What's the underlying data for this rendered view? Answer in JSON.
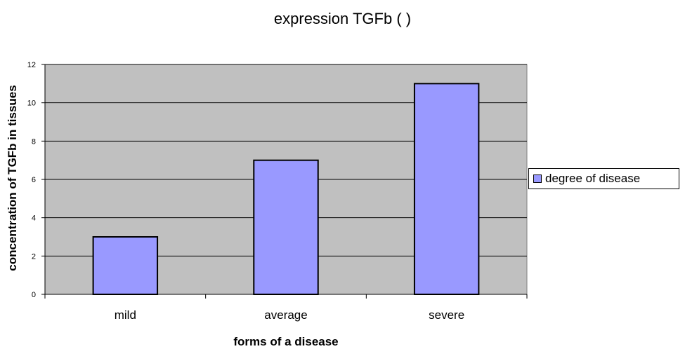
{
  "chart_data": {
    "type": "bar",
    "title": "expression   TGFb ( )",
    "xlabel": "forms of a disease",
    "ylabel": "concentration of TGFb in tissues",
    "categories": [
      "mild",
      "average",
      "severe"
    ],
    "series": [
      {
        "name": "degree of disease",
        "values": [
          3,
          7,
          11
        ]
      }
    ],
    "ylim": [
      0,
      12
    ],
    "yticks": [
      "0",
      "2",
      "4",
      "6",
      "8",
      "10",
      "12"
    ],
    "grid": true,
    "legend": "right",
    "colors": {
      "plot_background": "#c0c0c0",
      "bar_fill": "#9999ff",
      "bar_stroke": "#000000",
      "gridline": "#000000"
    }
  }
}
